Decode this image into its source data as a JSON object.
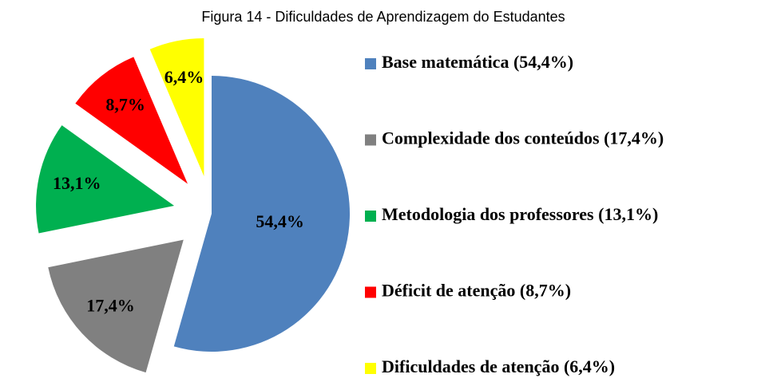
{
  "chart_data": {
    "type": "pie",
    "title": "Figura 14 - Dificuldades de Aprendizagem do Estudantes",
    "categories": [
      "Base matemática (54,4%)",
      "Complexidade dos conteúdos (17,4%)",
      "Metodologia dos professores (13,1%)",
      "Déficit de atenção (8,7%)",
      "Dificuldades de atenção (6,4%)"
    ],
    "values": [
      54.4,
      17.4,
      13.1,
      8.7,
      6.4
    ],
    "value_labels": [
      "54,4%",
      "17,4%",
      "13,1%",
      "8,7%",
      "6,4%"
    ],
    "colors": [
      "#4f81bd",
      "#808080",
      "#00b050",
      "#ff0000",
      "#ffff00"
    ],
    "legend": "right"
  }
}
